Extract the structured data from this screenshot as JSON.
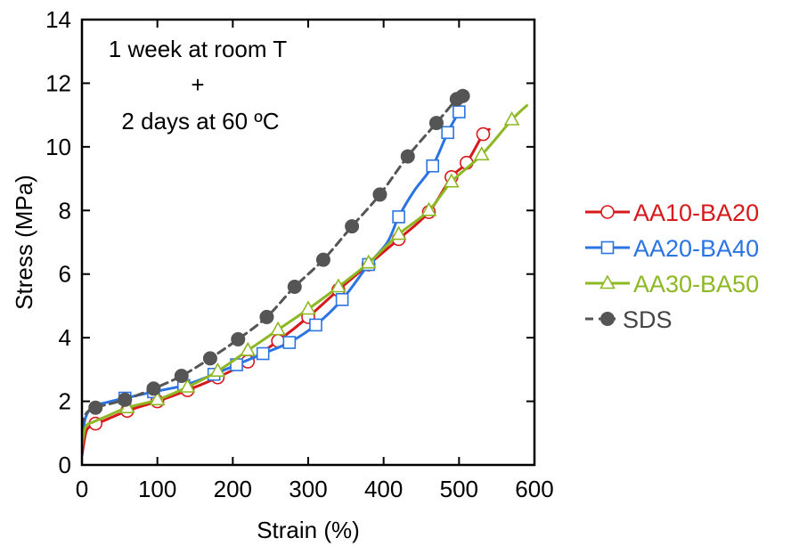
{
  "chart_data": {
    "type": "line",
    "title": "",
    "annotation": [
      "1 week at room T",
      "+",
      "2 days at 60 ºC"
    ],
    "xlabel": "Strain (%)",
    "ylabel": "Stress (MPa)",
    "xlim": [
      0,
      600
    ],
    "ylim": [
      0,
      14
    ],
    "xticks": [
      0,
      100,
      200,
      300,
      400,
      500,
      600
    ],
    "yticks": [
      0,
      2,
      4,
      6,
      8,
      10,
      12,
      14
    ],
    "grid": false,
    "legend_position": "right",
    "series": [
      {
        "name": "AA10-BA20",
        "color": "#d7191c",
        "marker": "open-circle",
        "dashed": false,
        "x": [
          0,
          5,
          10,
          18,
          30,
          60,
          100,
          140,
          180,
          220,
          260,
          300,
          340,
          380,
          420,
          460,
          490,
          510,
          532,
          540
        ],
        "y": [
          0.3,
          1.0,
          1.2,
          1.3,
          1.4,
          1.7,
          2.0,
          2.35,
          2.75,
          3.25,
          3.9,
          4.65,
          5.5,
          6.3,
          7.1,
          7.95,
          9.05,
          9.5,
          10.4,
          10.55
        ],
        "markers_x": [
          18,
          60,
          100,
          140,
          180,
          220,
          260,
          300,
          340,
          380,
          420,
          460,
          490,
          510,
          532
        ],
        "markers_y": [
          1.3,
          1.7,
          2.0,
          2.35,
          2.75,
          3.25,
          3.9,
          4.65,
          5.5,
          6.3,
          7.1,
          7.95,
          9.05,
          9.5,
          10.4
        ]
      },
      {
        "name": "AA20-BA40",
        "color": "#2a74e4",
        "marker": "open-square",
        "dashed": false,
        "x": [
          0,
          5,
          15,
          30,
          57,
          95,
          135,
          175,
          205,
          240,
          275,
          310,
          345,
          380,
          405,
          420,
          440,
          465,
          485,
          500
        ],
        "y": [
          0.8,
          1.5,
          1.85,
          1.95,
          2.1,
          2.3,
          2.5,
          2.85,
          3.15,
          3.5,
          3.85,
          4.4,
          5.2,
          6.3,
          7.0,
          7.8,
          8.6,
          9.4,
          10.45,
          11.1
        ],
        "markers_x": [
          57,
          95,
          135,
          175,
          205,
          240,
          275,
          310,
          345,
          380,
          420,
          465,
          485,
          500
        ],
        "markers_y": [
          2.1,
          2.3,
          2.5,
          2.85,
          3.15,
          3.5,
          3.85,
          4.4,
          5.2,
          6.3,
          7.8,
          9.4,
          10.45,
          11.1
        ]
      },
      {
        "name": "AA30-BA50",
        "color": "#8db824",
        "marker": "open-triangle",
        "dashed": false,
        "x": [
          0,
          5,
          15,
          30,
          60,
          100,
          140,
          180,
          220,
          260,
          300,
          340,
          380,
          420,
          460,
          490,
          530,
          570,
          590
        ],
        "y": [
          0.6,
          1.2,
          1.35,
          1.5,
          1.8,
          2.05,
          2.45,
          2.95,
          3.6,
          4.25,
          4.9,
          5.6,
          6.35,
          7.25,
          8.0,
          8.9,
          9.75,
          10.85,
          11.3
        ],
        "markers_x": [
          60,
          100,
          140,
          180,
          220,
          260,
          300,
          340,
          380,
          420,
          460,
          490,
          530,
          570
        ],
        "markers_y": [
          1.8,
          2.05,
          2.45,
          2.95,
          3.6,
          4.25,
          4.9,
          5.6,
          6.35,
          7.25,
          8.0,
          8.9,
          9.75,
          10.85
        ]
      },
      {
        "name": "SDS",
        "color": "#555555",
        "marker": "filled-circle",
        "dashed": true,
        "x": [
          0,
          5,
          18,
          57,
          95,
          132,
          170,
          207,
          245,
          282,
          320,
          358,
          395,
          432,
          470,
          497,
          505
        ],
        "y": [
          1.2,
          1.6,
          1.8,
          2.05,
          2.4,
          2.8,
          3.35,
          3.95,
          4.65,
          5.6,
          6.45,
          7.5,
          8.5,
          9.7,
          10.75,
          11.5,
          11.6
        ],
        "markers_x": [
          18,
          57,
          95,
          132,
          170,
          207,
          245,
          282,
          320,
          358,
          395,
          432,
          470,
          497,
          505
        ],
        "markers_y": [
          1.8,
          2.05,
          2.4,
          2.8,
          3.35,
          3.95,
          4.65,
          5.6,
          6.45,
          7.5,
          8.5,
          9.7,
          10.75,
          11.5,
          11.6
        ]
      }
    ]
  }
}
